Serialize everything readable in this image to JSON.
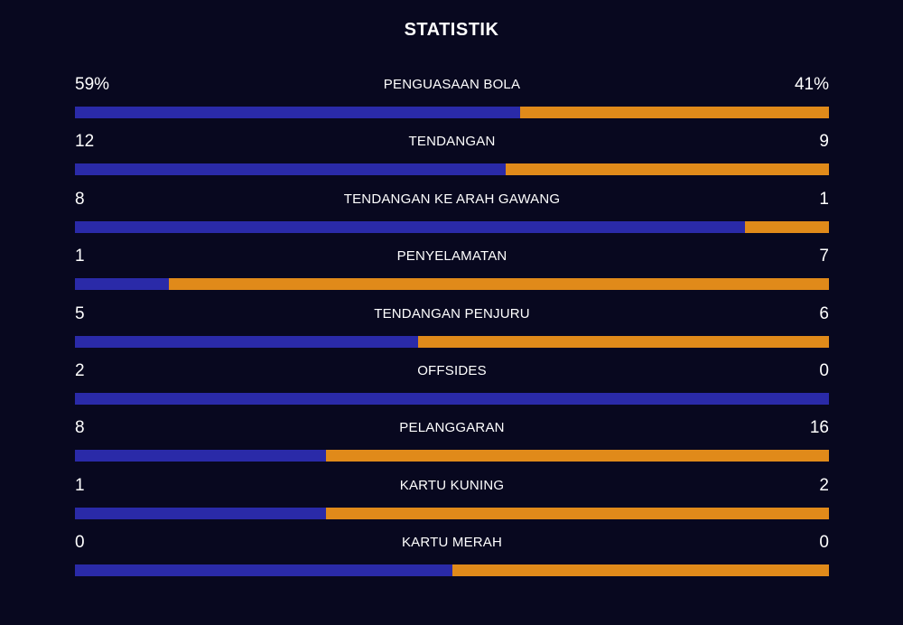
{
  "header": {
    "title": "STATISTIK"
  },
  "colors": {
    "background": "#08081f",
    "home": "#2a2aa8",
    "away": "#e08a1a",
    "text": "#ffffff"
  },
  "stats": [
    {
      "label": "PENGUASAAN BOLA",
      "home": "59%",
      "away": "41%",
      "home_share": 0.59
    },
    {
      "label": "TENDANGAN",
      "home": "12",
      "away": "9",
      "home_share": 0.5714
    },
    {
      "label": "TENDANGAN KE ARAH GAWANG",
      "home": "8",
      "away": "1",
      "home_share": 0.8889
    },
    {
      "label": "PENYELAMATAN",
      "home": "1",
      "away": "7",
      "home_share": 0.125
    },
    {
      "label": "TENDANGAN PENJURU",
      "home": "5",
      "away": "6",
      "home_share": 0.4545
    },
    {
      "label": "OFFSIDES",
      "home": "2",
      "away": "0",
      "home_share": 1.0
    },
    {
      "label": "PELANGGARAN",
      "home": "8",
      "away": "16",
      "home_share": 0.3333
    },
    {
      "label": "KARTU KUNING",
      "home": "1",
      "away": "2",
      "home_share": 0.3333
    },
    {
      "label": "KARTU MERAH",
      "home": "0",
      "away": "0",
      "home_share": 0.5
    }
  ]
}
